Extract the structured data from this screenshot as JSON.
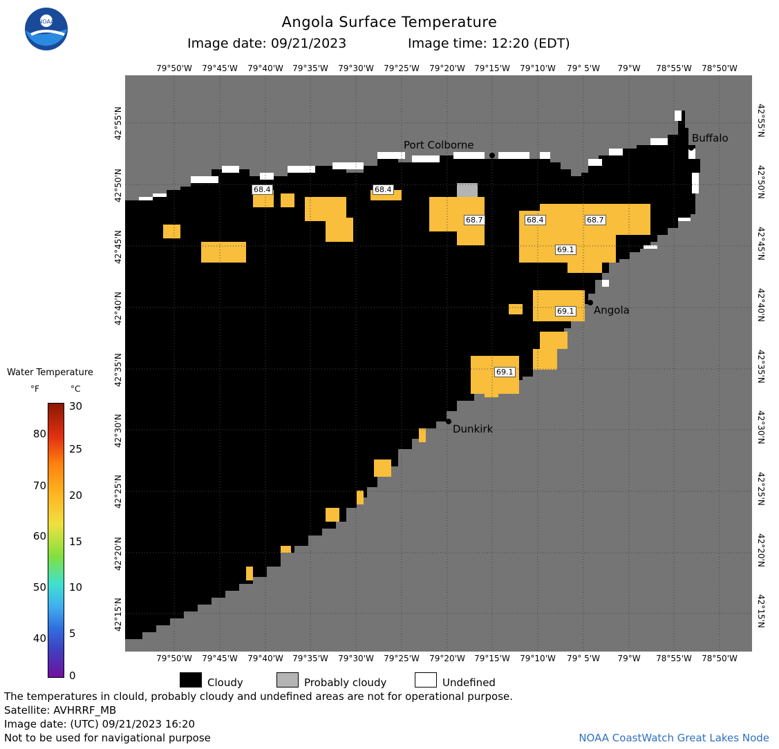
{
  "header": {
    "title": "Angola Surface Temperature",
    "image_date_label": "Image date: 09/21/2023",
    "image_time_label": "Image time: 12:20 (EDT)"
  },
  "map": {
    "lon_labels": [
      "79°50'W",
      "79°45'W",
      "79°40'W",
      "79°35'W",
      "79°30'W",
      "79°25'W",
      "79°20'W",
      "79°15'W",
      "79°10'W",
      "79° 5'W",
      "79°W",
      "78°55'W",
      "78°50'W"
    ],
    "lat_labels": [
      "42°55'N",
      "42°50'N",
      "42°45'N",
      "42°40'N",
      "42°35'N",
      "42°30'N",
      "42°25'N",
      "42°20'N",
      "42°15'N"
    ],
    "cities": [
      {
        "name": "Port Colborne"
      },
      {
        "name": "Buffalo"
      },
      {
        "name": "Angola"
      },
      {
        "name": "Dunkirk"
      }
    ],
    "sst_labels": [
      "68.4",
      "68.4",
      "68.7",
      "68.4",
      "68.7",
      "69.1",
      "69.1",
      "69.1"
    ],
    "colors": {
      "land": "#757575",
      "cloud": "#000000",
      "probably_cloudy": "#b4b4b4",
      "undefined": "#ffffff",
      "water_warm": "#f8be3c"
    }
  },
  "legend": {
    "title": "Water Temperature",
    "unit_f": "°F",
    "unit_c": "°C",
    "f_ticks": [
      "80",
      "70",
      "60",
      "50",
      "40"
    ],
    "c_ticks": [
      "30",
      "25",
      "20",
      "15",
      "10",
      "5",
      "0"
    ]
  },
  "key": {
    "cloudy": "Cloudy",
    "probably_cloudy": "Probably cloudy",
    "undefined": "Undefined"
  },
  "footer": {
    "line1": "The temperatures in clould, probably cloudy and undefined areas are not for operational purpose.",
    "line2": "Satellite: AVHRRF_MB",
    "line3": "Image date: (UTC) 09/21/2023  16:20",
    "line4": "Not to be used for navigational purpose",
    "credit": "NOAA CoastWatch Great Lakes Node"
  }
}
